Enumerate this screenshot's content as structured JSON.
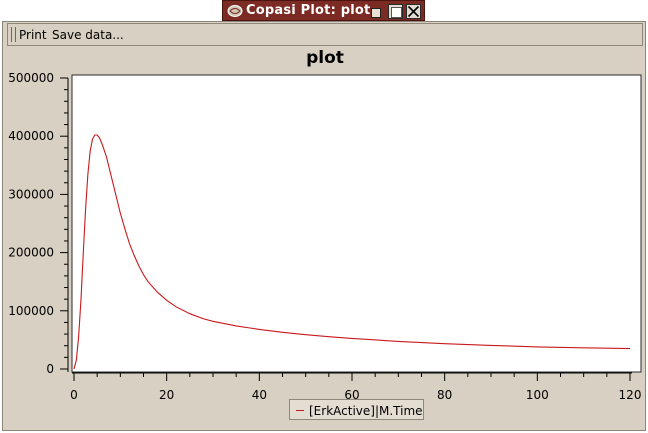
{
  "window": {
    "title": "Copasi Plot: plot",
    "icons": {
      "app": "copasi-app-icon",
      "minimize": "minimize-icon",
      "maximize": "maximize-icon",
      "close": "close-icon"
    }
  },
  "toolbar": {
    "print_label": "Print",
    "save_label": "Save data..."
  },
  "colors": {
    "titlebar": "#7c2a24",
    "panel": "#d8d0c2",
    "curve": "#c8191c"
  },
  "chart_data": {
    "type": "line",
    "title": "plot",
    "xlabel": "",
    "ylabel": "",
    "xlim": [
      0,
      120
    ],
    "ylim": [
      0,
      500000
    ],
    "x_ticks": [
      "0",
      "20",
      "40",
      "60",
      "80",
      "100",
      "120"
    ],
    "y_ticks": [
      "0",
      "100000",
      "200000",
      "300000",
      "400000",
      "500000"
    ],
    "grid": false,
    "legend_position": "bottom-center",
    "series": [
      {
        "name": "[ErkActive]|M.Time",
        "color": "#c8191c",
        "x": [
          0,
          0.5,
          1,
          1.5,
          2,
          2.5,
          3,
          3.5,
          4,
          4.5,
          5,
          5.5,
          6,
          7,
          8,
          9,
          10,
          11,
          12,
          13,
          14,
          15,
          16,
          18,
          20,
          22,
          25,
          28,
          30,
          35,
          40,
          45,
          50,
          55,
          60,
          70,
          80,
          90,
          100,
          110,
          120
        ],
        "y": [
          0,
          15000,
          55000,
          120000,
          200000,
          275000,
          335000,
          375000,
          395000,
          402000,
          402000,
          397000,
          388000,
          365000,
          332000,
          300000,
          268000,
          240000,
          215000,
          195000,
          177000,
          162000,
          150000,
          132000,
          118000,
          107000,
          95000,
          86000,
          82000,
          74000,
          68000,
          63000,
          59000,
          55500,
          52500,
          47500,
          43500,
          40500,
          38000,
          36500,
          35000
        ]
      }
    ]
  }
}
